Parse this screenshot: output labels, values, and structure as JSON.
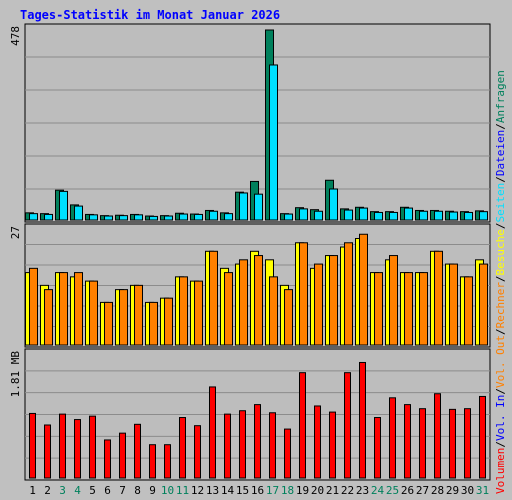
{
  "colors": {
    "background": "#c0c0c0",
    "panel": "#bdbdbd",
    "grid": "#8c8c8c",
    "title": "#0000ff",
    "anfragen": "#00805c",
    "dateien": "#00e0ff",
    "seiten": "#00e0ff",
    "besuche": "#ffff00",
    "rechner": "#ff8000",
    "volumen": "#ff0000",
    "vol_in": "#ff0000",
    "vol_out": "#ff8000",
    "weekend_label": "#00805c",
    "normal_label": "#000000"
  },
  "chart_data": {
    "type": "bar",
    "title": "Tages-Statistik im Monat Januar 2026",
    "categories": [
      "1",
      "2",
      "3",
      "4",
      "5",
      "6",
      "7",
      "8",
      "9",
      "10",
      "11",
      "12",
      "13",
      "14",
      "15",
      "16",
      "17",
      "18",
      "19",
      "20",
      "21",
      "22",
      "23",
      "24",
      "25",
      "26",
      "27",
      "28",
      "29",
      "30",
      "31"
    ],
    "weekend_days": [
      "3",
      "4",
      "10",
      "11",
      "17",
      "18",
      "24",
      "25",
      "31"
    ],
    "panels": [
      {
        "id": "requests",
        "max_label": "478",
        "ymax": 478,
        "series": [
          {
            "name": "Anfragen",
            "color": "#00805c",
            "values": [
              18,
              16,
              75,
              38,
              14,
              11,
              12,
              14,
              10,
              11,
              17,
              15,
              24,
              18,
              70,
              97,
              478,
              16,
              31,
              26,
              100,
              28,
              32,
              21,
              21,
              32,
              24,
              24,
              22,
              21,
              23
            ]
          },
          {
            "name": "Dateien",
            "color": "#00e0ff",
            "values": [
              16,
              14,
              72,
              35,
              13,
              10,
              11,
              13,
              9,
              10,
              15,
              14,
              22,
              16,
              68,
              65,
              390,
              15,
              28,
              22,
              78,
              25,
              30,
              19,
              19,
              30,
              22,
              22,
              20,
              19,
              21
            ]
          }
        ]
      },
      {
        "id": "visits",
        "max_label": "27",
        "ymax": 27,
        "series": [
          {
            "name": "Besuche",
            "color": "#ffff00",
            "values": [
              17,
              14,
              17,
              16,
              15,
              10,
              13,
              14,
              10,
              11,
              16,
              15,
              22,
              18,
              19,
              22,
              20,
              14,
              24,
              18,
              21,
              23,
              25,
              17,
              20,
              17,
              17,
              22,
              19,
              16,
              20
            ]
          },
          {
            "name": "Rechner",
            "color": "#ff8000",
            "values": [
              18,
              13,
              17,
              17,
              15,
              10,
              13,
              14,
              10,
              11,
              16,
              15,
              22,
              17,
              20,
              21,
              16,
              13,
              24,
              19,
              21,
              24,
              26,
              17,
              21,
              17,
              17,
              22,
              19,
              16,
              19
            ]
          }
        ]
      },
      {
        "id": "volume",
        "max_label": "1.81 MB",
        "ymax": 1.81,
        "series": [
          {
            "name": "Volumen",
            "color": "#ff0000",
            "values": [
              0.95,
              0.78,
              0.94,
              0.86,
              0.91,
              0.56,
              0.66,
              0.79,
              0.49,
              0.49,
              0.89,
              0.77,
              1.34,
              0.94,
              0.99,
              1.08,
              0.96,
              0.72,
              1.55,
              1.06,
              0.97,
              1.55,
              1.7,
              0.89,
              1.18,
              1.08,
              1.02,
              1.24,
              1.01,
              1.02,
              1.2
            ]
          }
        ]
      }
    ],
    "legend_right": [
      {
        "panel": "requests",
        "items": [
          {
            "text": "Anfragen",
            "color": "#00805c"
          },
          {
            "text": "Dateien",
            "color": "#00e0ff"
          }
        ]
      },
      {
        "panel": "visits",
        "items": [
          {
            "text": "Seiten",
            "color": "#00e0ff"
          },
          {
            "text": "Besuche",
            "color": "#ffff00"
          }
        ]
      },
      {
        "panel": "visits2",
        "items": [
          {
            "text": "Rechner",
            "color": "#ff8000"
          },
          {
            "text": "Vol. Out",
            "color": "#ff8000"
          }
        ]
      },
      {
        "panel": "volume",
        "items": [
          {
            "text": "Vol. In",
            "color": "#0000ff"
          },
          {
            "text": "Volumen",
            "color": "#ff0000"
          }
        ]
      }
    ],
    "legend_separator": "/"
  }
}
